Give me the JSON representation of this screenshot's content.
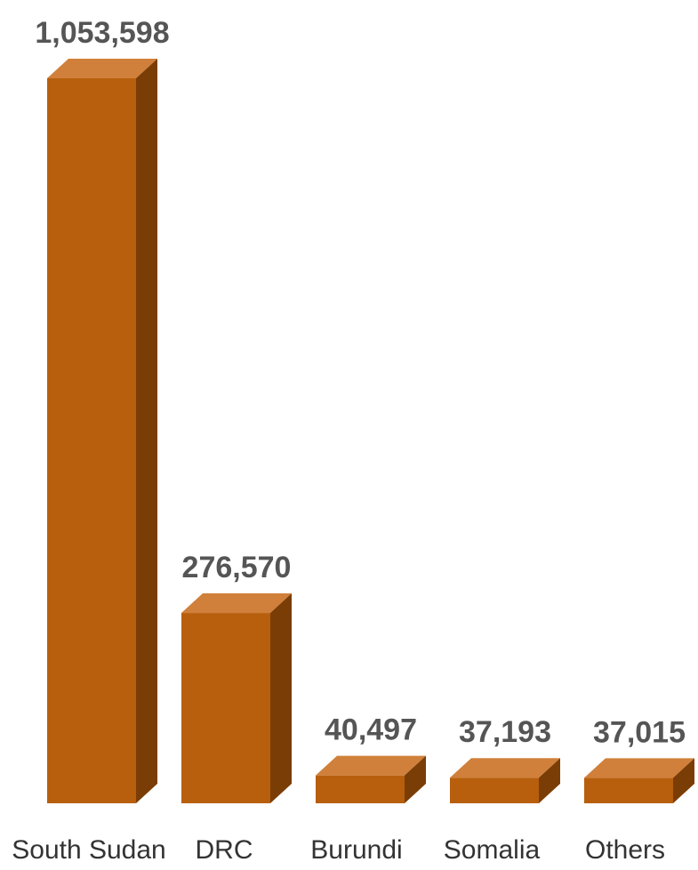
{
  "chart_data": {
    "type": "bar",
    "style": "3d",
    "categories": [
      "South Sudan",
      "DRC",
      "Burundi",
      "Somalia",
      "Others"
    ],
    "values": [
      1053598,
      276570,
      40497,
      37193,
      37015
    ],
    "value_labels": [
      "1,053,598",
      "276,570",
      "40,497",
      "37,193",
      "37,015"
    ],
    "title": "",
    "xlabel": "",
    "ylabel": "",
    "ylim": [
      0,
      1053598
    ],
    "grid": false,
    "legend": "none",
    "colors": {
      "front": "#B85F0E",
      "top": "#D0803A",
      "side": "#7A3D05"
    }
  }
}
